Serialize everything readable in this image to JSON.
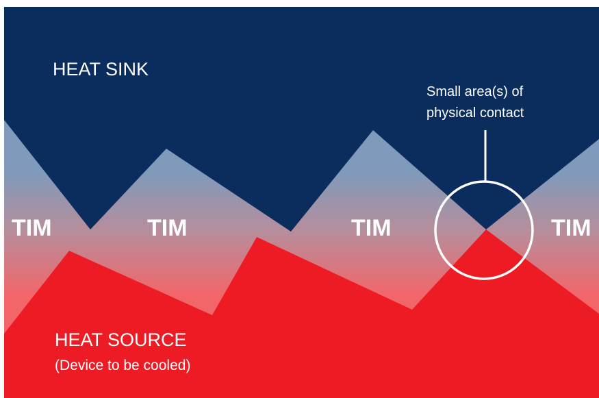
{
  "heat_sink": {
    "label": "HEAT SINK",
    "color": "#0b2d5e"
  },
  "heat_source": {
    "label": "HEAT SOURCE",
    "sublabel": "(Device to be cooled)",
    "color": "#ed1c24"
  },
  "tim": {
    "labels": [
      "TIM",
      "TIM",
      "TIM",
      "TIM"
    ],
    "gradient": [
      "#7f9abb",
      "#b68e9c",
      "#f2666a"
    ]
  },
  "callout": {
    "line1": "Small area(s) of",
    "line2": "physical contact",
    "color": "#ffffff"
  }
}
